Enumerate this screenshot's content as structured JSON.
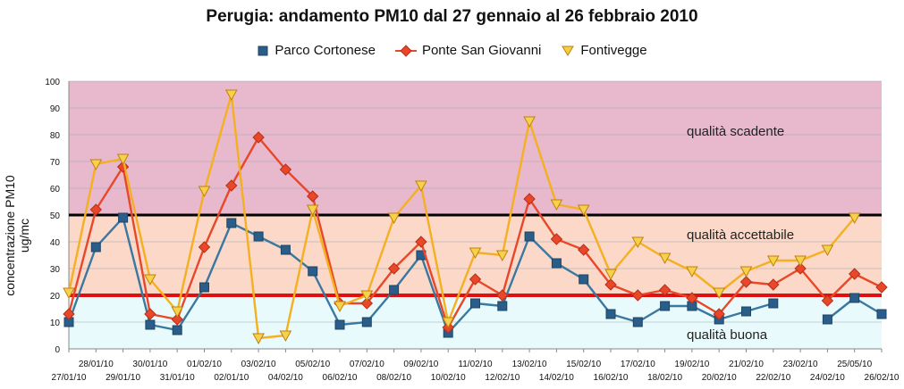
{
  "chart_data": {
    "type": "line",
    "title": "Perugia: andamento PM10 dal 27 gennaio al 26 febbraio 2010",
    "ylabel": "concentrazione PM10 ug/mc",
    "ylim": [
      0,
      100
    ],
    "yticks": [
      "0",
      "10",
      "20",
      "30",
      "40",
      "50",
      "60",
      "70",
      "80",
      "90",
      "100"
    ],
    "categories": [
      "27/01/10",
      "28/01/10",
      "29/01/10",
      "30/01/10",
      "31/01/10",
      "01/02/10",
      "02/01/10",
      "03/02/10",
      "04/02/10",
      "05/02/10",
      "06/02/10",
      "07/02/10",
      "08/02/10",
      "09/02/10",
      "10/02/10",
      "11/02/10",
      "12/02/10",
      "13/02/10",
      "14/02/10",
      "15/02/10",
      "16/02/10",
      "17/02/10",
      "18/02/10",
      "19/02/10",
      "20/02/10",
      "21/02/10",
      "22/02/10",
      "23/02/10",
      "24/02/10",
      "25/05/10",
      "26/02/10"
    ],
    "series": [
      {
        "name": "Parco Cortonese",
        "color": "#2a5d88",
        "marker": "square",
        "values": [
          10,
          38,
          49,
          9,
          7,
          23,
          47,
          42,
          37,
          29,
          9,
          10,
          22,
          35,
          6,
          17,
          16,
          42,
          32,
          26,
          13,
          10,
          16,
          16,
          11,
          14,
          17,
          null,
          11,
          19,
          13
        ]
      },
      {
        "name": "Ponte San Giovanni",
        "color": "#e8472a",
        "marker": "diamond",
        "values": [
          13,
          52,
          68,
          13,
          11,
          38,
          61,
          79,
          67,
          57,
          17,
          17,
          30,
          40,
          8,
          26,
          20,
          56,
          41,
          37,
          24,
          20,
          22,
          19,
          13,
          25,
          24,
          30,
          18,
          28,
          23
        ]
      },
      {
        "name": "Fontivegge",
        "color": "#f4b020",
        "marker": "triangle-down",
        "values": [
          21,
          69,
          71,
          26,
          14,
          59,
          95,
          4,
          5,
          52,
          16,
          20,
          49,
          61,
          10,
          36,
          35,
          85,
          54,
          52,
          28,
          40,
          34,
          29,
          21,
          29,
          33,
          33,
          37,
          49,
          null
        ]
      }
    ],
    "thresholds": [
      {
        "value": 50,
        "color": "#000000"
      },
      {
        "value": 20,
        "color": "#e01010"
      }
    ],
    "zones": [
      {
        "from": 50,
        "to": 100,
        "color": "#e8b8cc",
        "label": "qualità scadente"
      },
      {
        "from": 20,
        "to": 50,
        "color": "#fbd8c8",
        "label": "qualità accettabile"
      },
      {
        "from": 0,
        "to": 20,
        "color": "#e8fafb",
        "label": "qualità buona"
      }
    ],
    "grid": true,
    "legend_position": "top"
  }
}
